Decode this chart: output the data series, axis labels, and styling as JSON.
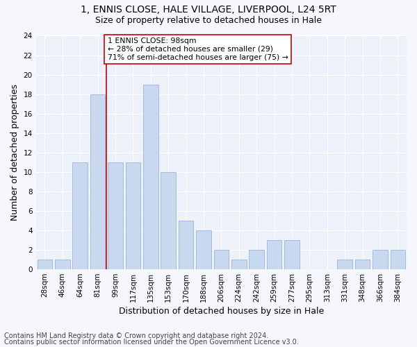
{
  "title1": "1, ENNIS CLOSE, HALE VILLAGE, LIVERPOOL, L24 5RT",
  "title2": "Size of property relative to detached houses in Hale",
  "xlabel": "Distribution of detached houses by size in Hale",
  "ylabel": "Number of detached properties",
  "categories": [
    "28sqm",
    "46sqm",
    "64sqm",
    "81sqm",
    "99sqm",
    "117sqm",
    "135sqm",
    "153sqm",
    "170sqm",
    "188sqm",
    "206sqm",
    "224sqm",
    "242sqm",
    "259sqm",
    "277sqm",
    "295sqm",
    "313sqm",
    "331sqm",
    "348sqm",
    "366sqm",
    "384sqm"
  ],
  "values": [
    1,
    1,
    11,
    18,
    11,
    11,
    19,
    10,
    5,
    4,
    2,
    1,
    2,
    3,
    3,
    0,
    0,
    1,
    1,
    2,
    2
  ],
  "bar_color": "#c8d8ee",
  "bar_edge_color": "#9ab4d4",
  "subject_line_color": "#cc0000",
  "annotation_text": "1 ENNIS CLOSE: 98sqm\n← 28% of detached houses are smaller (29)\n71% of semi-detached houses are larger (75) →",
  "annotation_box_color": "#ffffff",
  "annotation_box_edge": "#cc0000",
  "ylim": [
    0,
    24
  ],
  "yticks": [
    0,
    2,
    4,
    6,
    8,
    10,
    12,
    14,
    16,
    18,
    20,
    22,
    24
  ],
  "footer1": "Contains HM Land Registry data © Crown copyright and database right 2024.",
  "footer2": "Contains public sector information licensed under the Open Government Licence v3.0.",
  "bg_color": "#edf1f9",
  "grid_color": "#ffffff",
  "title1_fontsize": 10,
  "title2_fontsize": 9,
  "xlabel_fontsize": 9,
  "ylabel_fontsize": 9,
  "tick_fontsize": 7.5,
  "footer_fontsize": 7,
  "fig_bg": "#f5f7fc"
}
